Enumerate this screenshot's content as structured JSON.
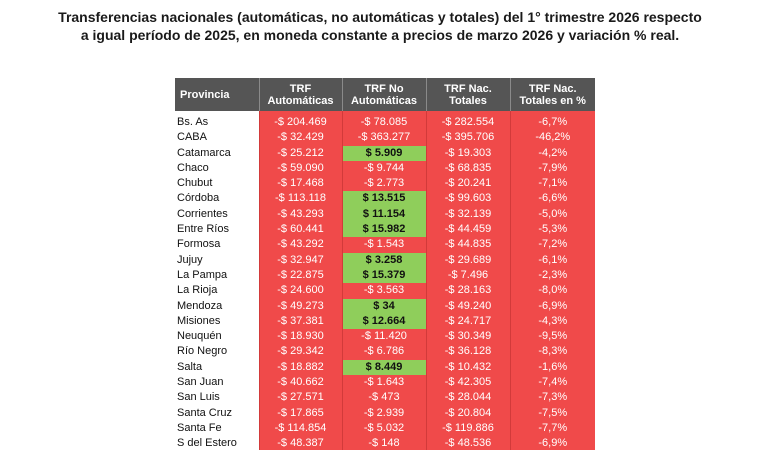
{
  "title": {
    "line1": "Transferencias nacionales (automáticas, no automáticas y totales) del 1° trimestre 2026 respecto",
    "line2": "a igual período de 2025, en moneda constante a precios de marzo 2026 y variación % real."
  },
  "colors": {
    "header_bg": "#555555",
    "negative_bg": "#f04a4a",
    "positive_bg": "#8fce5b"
  },
  "chart_data": {
    "type": "table",
    "columns": [
      "Provincia",
      "TRF Automáticas",
      "TRF No Automáticas",
      "TRF Nac. Totales",
      "TRF Nac. Totales en %"
    ],
    "rows": [
      [
        "Bs. As",
        "-$ 204.469",
        "-$ 78.085",
        "-$ 282.554",
        "-6,7%"
      ],
      [
        "CABA",
        "-$ 32.429",
        "-$ 363.277",
        "-$ 395.706",
        "-46,2%"
      ],
      [
        "Catamarca",
        "-$ 25.212",
        "$ 5.909",
        "-$ 19.303",
        "-4,2%"
      ],
      [
        "Chaco",
        "-$ 59.090",
        "-$ 9.744",
        "-$ 68.835",
        "-7,9%"
      ],
      [
        "Chubut",
        "-$ 17.468",
        "-$ 2.773",
        "-$ 20.241",
        "-7,1%"
      ],
      [
        "Córdoba",
        "-$ 113.118",
        "$ 13.515",
        "-$ 99.603",
        "-6,6%"
      ],
      [
        "Corrientes",
        "-$ 43.293",
        "$ 11.154",
        "-$ 32.139",
        "-5,0%"
      ],
      [
        "Entre Ríos",
        "-$ 60.441",
        "$ 15.982",
        "-$ 44.459",
        "-5,3%"
      ],
      [
        "Formosa",
        "-$ 43.292",
        "-$ 1.543",
        "-$ 44.835",
        "-7,2%"
      ],
      [
        "Jujuy",
        "-$ 32.947",
        "$ 3.258",
        "-$ 29.689",
        "-6,1%"
      ],
      [
        "La Pampa",
        "-$ 22.875",
        "$ 15.379",
        "-$ 7.496",
        "-2,3%"
      ],
      [
        "La Rioja",
        "-$ 24.600",
        "-$ 3.563",
        "-$ 28.163",
        "-8,0%"
      ],
      [
        "Mendoza",
        "-$ 49.273",
        "$ 34",
        "-$ 49.240",
        "-6,9%"
      ],
      [
        "Misiones",
        "-$ 37.381",
        "$ 12.664",
        "-$ 24.717",
        "-4,3%"
      ],
      [
        "Neuquén",
        "-$ 18.930",
        "-$ 11.420",
        "-$ 30.349",
        "-9,5%"
      ],
      [
        "Río Negro",
        "-$ 29.342",
        "-$ 6.786",
        "-$ 36.128",
        "-8,3%"
      ],
      [
        "Salta",
        "-$ 18.882",
        "$ 8.449",
        "-$ 10.432",
        "-1,6%"
      ],
      [
        "San Juan",
        "-$ 40.662",
        "-$ 1.643",
        "-$ 42.305",
        "-7,4%"
      ],
      [
        "San Luis",
        "-$ 27.571",
        "-$ 473",
        "-$ 28.044",
        "-7,3%"
      ],
      [
        "Santa Cruz",
        "-$ 17.865",
        "-$ 2.939",
        "-$ 20.804",
        "-7,5%"
      ],
      [
        "Santa Fe",
        "-$ 114.854",
        "-$ 5.032",
        "-$ 119.886",
        "-7,7%"
      ],
      [
        "S del Estero",
        "-$ 48.387",
        "-$ 148",
        "-$ 48.536",
        "-6,9%"
      ]
    ]
  }
}
